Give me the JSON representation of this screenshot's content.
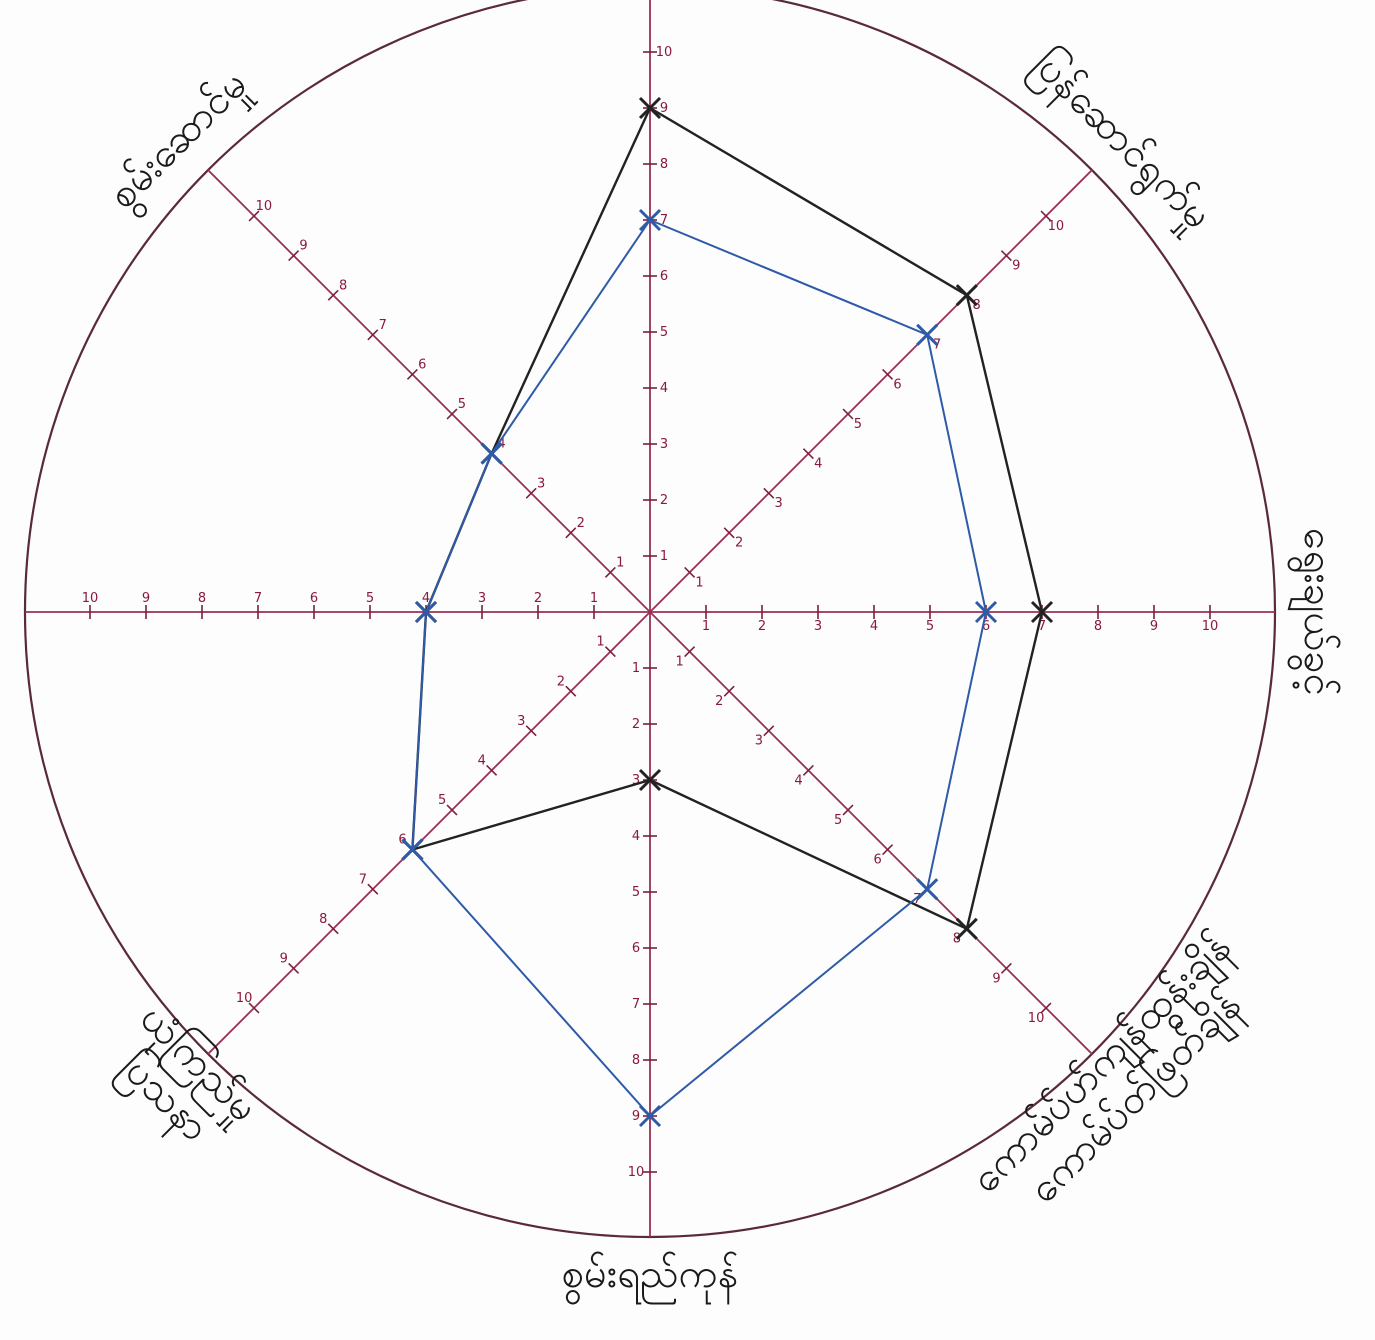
{
  "chart_data": {
    "type": "radar",
    "title": "",
    "axes": [
      {
        "label": ""
      },
      {
        "label": "ပြန်ဆောင်ရွက်မှု"
      },
      {
        "label": "ရွေးချယ်ခွင့်"
      },
      {
        "label": "ကောမ်ပ်ဟ်ကျန်ထွန်းချိန် ကောမ်ပ်တ်ဖြတ်ချိန်"
      },
      {
        "label": "စွမ်းရည်ကုန်"
      },
      {
        "label": "ယုံကြည်မှု ပြသနာ"
      },
      {
        "label": ""
      },
      {
        "label": "စွမ်းဆောင်မှု"
      }
    ],
    "ticks": [
      1,
      2,
      3,
      4,
      5,
      6,
      7,
      8,
      9,
      10
    ],
    "rmax": 10,
    "series": [
      {
        "color": "#222222",
        "values": [
          9,
          8,
          7,
          8,
          3,
          6,
          4,
          4
        ]
      },
      {
        "color": "#2e5aa8",
        "values": [
          7,
          7,
          6,
          7,
          9,
          6,
          4,
          4
        ]
      }
    ]
  }
}
